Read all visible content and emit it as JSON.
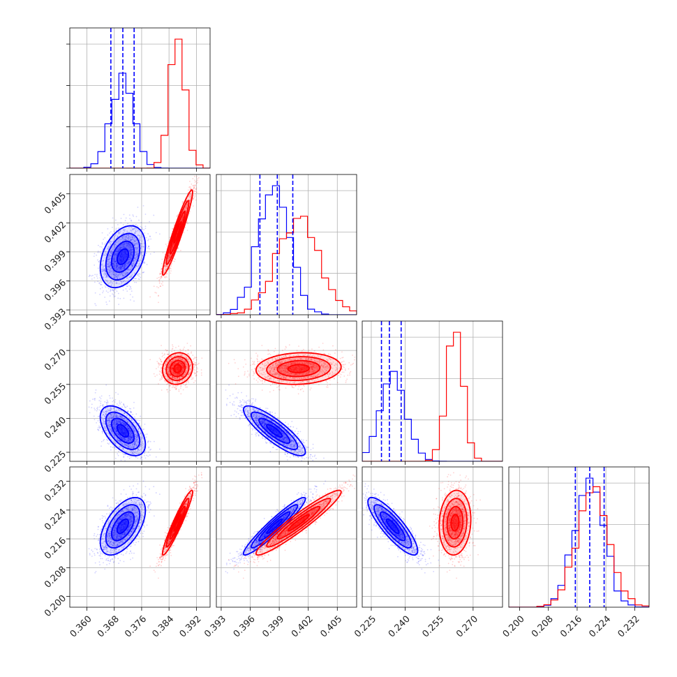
{
  "chart_data": {
    "type": "corner",
    "variables": [
      {
        "ticks": [
          0.36,
          0.368,
          0.376,
          0.384,
          0.392
        ],
        "tick_labels": [
          "0.360",
          "0.368",
          "0.376",
          "0.384",
          "0.392"
        ],
        "lim": [
          0.355,
          0.396
        ]
      },
      {
        "ticks": [
          0.393,
          0.396,
          0.399,
          0.402,
          0.405
        ],
        "tick_labels": [
          "0.393",
          "0.396",
          "0.399",
          "0.402",
          "0.405"
        ],
        "lim": [
          0.3925,
          0.407
        ]
      },
      {
        "ticks": [
          0.225,
          0.24,
          0.255,
          0.27
        ],
        "tick_labels": [
          "0.225",
          "0.240",
          "0.255",
          "0.270"
        ],
        "lim": [
          0.221,
          0.283
        ]
      },
      {
        "ticks": [
          0.2,
          0.208,
          0.216,
          0.224,
          0.232
        ],
        "tick_labels": [
          "0.200",
          "0.208",
          "0.216",
          "0.224",
          "0.232"
        ],
        "lim": [
          0.197,
          0.236
        ]
      }
    ],
    "series": [
      {
        "color": "#0000ff",
        "mean": [
          0.3705,
          0.3985,
          0.2345,
          0.2195
        ],
        "sd": [
          0.0033,
          0.0016,
          0.0055,
          0.004
        ],
        "corr": [
          [
            1,
            0.35,
            -0.55,
            0.55
          ],
          [
            0.35,
            1,
            -0.85,
            0.95
          ],
          [
            -0.55,
            -0.85,
            1,
            -0.85
          ],
          [
            0.55,
            0.95,
            -0.85,
            1
          ]
        ],
        "quantiles": [
          [
            0.367,
            0.3705,
            0.3738
          ],
          [
            0.397,
            0.3988,
            0.4004
          ],
          [
            0.2295,
            0.233,
            0.2382
          ],
          [
            0.2155,
            0.2195,
            0.2235
          ]
        ]
      },
      {
        "color": "#ff0000",
        "mean": [
          0.3865,
          0.401,
          0.262,
          0.2205
        ],
        "sd": [
          0.0022,
          0.0022,
          0.0035,
          0.0045
        ],
        "corr": [
          [
            1,
            0.95,
            0.1,
            0.95
          ],
          [
            0.95,
            1,
            0.1,
            0.95
          ],
          [
            0.1,
            0.1,
            1,
            0.1
          ],
          [
            0.95,
            0.95,
            0.1,
            1
          ]
        ],
        "quantiles": []
      }
    ],
    "grid": true
  }
}
